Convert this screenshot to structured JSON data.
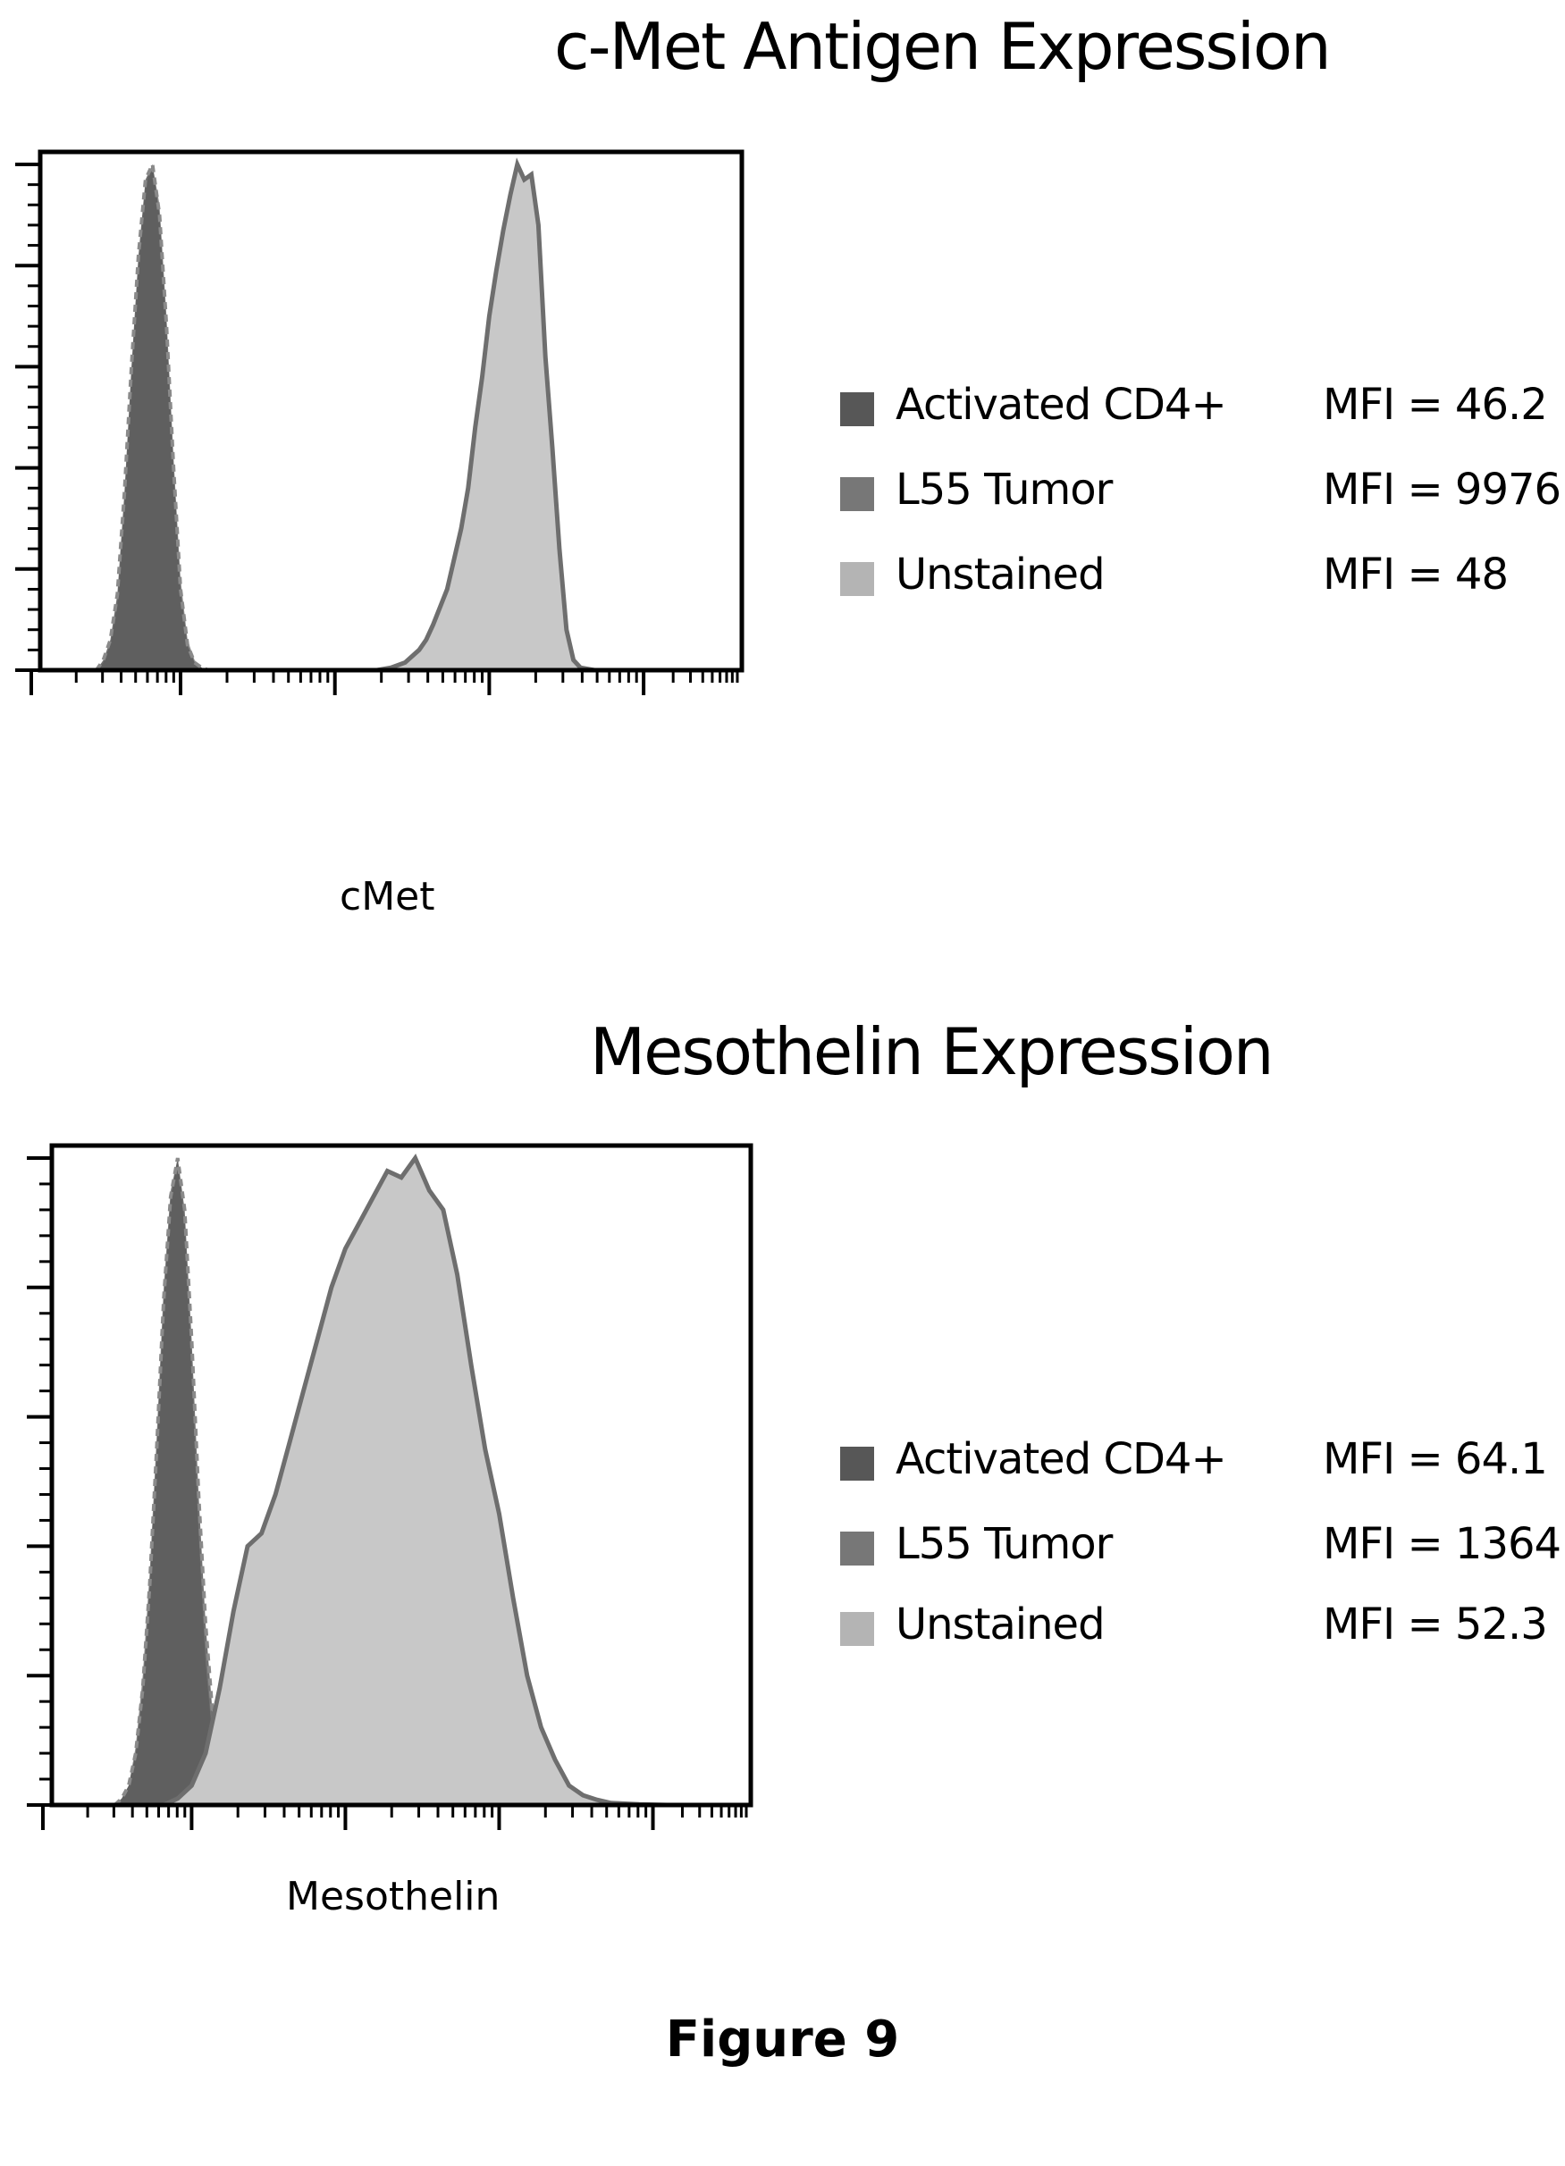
{
  "figure_caption": "Figure 9",
  "colors": {
    "activated_cd4": "#575757",
    "l55_tumor": "#777777",
    "unstained": "#b4b4b4",
    "outline": "#6e6e6e"
  },
  "panels": [
    {
      "title": "c-Met Antigen Expression",
      "xlabel": "cMet",
      "legend": [
        {
          "label": "Activated CD4+",
          "value": "MFI = 46.2",
          "color": "#575757"
        },
        {
          "label": "L55 Tumor",
          "value": "MFI = 9976",
          "color": "#777777"
        },
        {
          "label": "Unstained",
          "value": "MFI = 48",
          "color": "#b4b4b4"
        }
      ]
    },
    {
      "title": "Mesothelin Expression",
      "xlabel": "Mesothelin",
      "legend": [
        {
          "label": "Activated CD4+",
          "value": "MFI = 64.1",
          "color": "#575757"
        },
        {
          "label": "L55 Tumor",
          "value": "MFI = 1364",
          "color": "#777777"
        },
        {
          "label": "Unstained",
          "value": "MFI = 52.3",
          "color": "#b4b4b4"
        }
      ]
    }
  ],
  "chart_data": [
    {
      "type": "area",
      "title": "c-Met Antigen Expression",
      "xlabel": "cMet",
      "ylabel": "",
      "xlim": [
        0,
        100
      ],
      "ylim": [
        0,
        100
      ],
      "x_scale": "log (fluorescence intensity)",
      "grid": false,
      "legend_position": "right",
      "series": [
        {
          "name": "Activated CD4+",
          "color": "#575757",
          "style": "filled, dashed outline",
          "x": [
            8,
            9,
            10,
            11,
            12,
            13,
            14,
            15,
            16,
            17,
            18,
            19,
            20,
            21,
            22,
            23,
            24,
            25
          ],
          "y": [
            0,
            2,
            6,
            15,
            35,
            60,
            82,
            97,
            100,
            90,
            68,
            40,
            16,
            5,
            1.5,
            0.5,
            0,
            0
          ]
        },
        {
          "name": "L55 Tumor",
          "color": "#777777",
          "style": "filled, solid outline",
          "x": [
            48,
            50,
            52,
            54,
            55,
            56,
            58,
            60,
            61,
            62,
            63,
            64,
            65,
            66,
            67,
            68,
            69,
            70,
            71,
            72,
            73,
            74,
            75,
            76,
            77,
            79
          ],
          "y": [
            0,
            0.5,
            1.5,
            4,
            6,
            9,
            16,
            28,
            36,
            48,
            58,
            70,
            79,
            87,
            94,
            100,
            97,
            98,
            88,
            62,
            44,
            24,
            8,
            2,
            0.5,
            0
          ]
        },
        {
          "name": "Unstained",
          "color": "#b4b4b4",
          "style": "filled",
          "x": [
            8,
            9,
            10,
            11,
            12,
            13,
            14,
            15,
            16,
            17,
            18,
            19,
            20,
            21,
            22,
            23,
            24,
            25
          ],
          "y": [
            0,
            1.5,
            5,
            13,
            33,
            58,
            80,
            96,
            100,
            92,
            70,
            42,
            18,
            6,
            2,
            0.5,
            0,
            0
          ]
        }
      ]
    },
    {
      "type": "area",
      "title": "Mesothelin Expression",
      "xlabel": "Mesothelin",
      "ylabel": "",
      "xlim": [
        0,
        100
      ],
      "ylim": [
        0,
        100
      ],
      "x_scale": "log (fluorescence intensity)",
      "grid": false,
      "legend_position": "right",
      "series": [
        {
          "name": "Activated CD4+",
          "color": "#575757",
          "style": "filled, dashed outline",
          "x": [
            9,
            10,
            11,
            12,
            13,
            14,
            15,
            16,
            17,
            18,
            19,
            20,
            21,
            22,
            23,
            24,
            25,
            26,
            27,
            28
          ],
          "y": [
            0,
            1,
            3,
            8,
            18,
            34,
            55,
            78,
            94,
            100,
            92,
            72,
            48,
            28,
            14,
            6,
            2.5,
            1,
            0.3,
            0
          ]
        },
        {
          "name": "L55 Tumor",
          "color": "#777777",
          "style": "filled, solid outline",
          "x": [
            16,
            18,
            20,
            22,
            24,
            26,
            28,
            30,
            32,
            34,
            36,
            38,
            40,
            42,
            44,
            46,
            48,
            50,
            52,
            54,
            56,
            58,
            60,
            62,
            64,
            66,
            68,
            70,
            72,
            74,
            76,
            78,
            80,
            84,
            88
          ],
          "y": [
            0,
            1,
            3,
            8,
            18,
            30,
            40,
            42,
            48,
            56,
            64,
            72,
            80,
            86,
            90,
            94,
            98,
            97,
            100,
            95,
            92,
            82,
            68,
            55,
            45,
            32,
            20,
            12,
            7,
            3,
            1.5,
            0.8,
            0.3,
            0.1,
            0
          ]
        },
        {
          "name": "Unstained",
          "color": "#b4b4b4",
          "style": "filled",
          "x": [
            9,
            10,
            11,
            12,
            13,
            14,
            15,
            16,
            17,
            18,
            19,
            20,
            21,
            22,
            23,
            24,
            25,
            26,
            27,
            28
          ],
          "y": [
            0,
            1,
            3,
            9,
            20,
            36,
            57,
            80,
            95,
            100,
            90,
            68,
            42,
            22,
            10,
            4,
            1.5,
            0.5,
            0.2,
            0
          ]
        }
      ]
    }
  ]
}
